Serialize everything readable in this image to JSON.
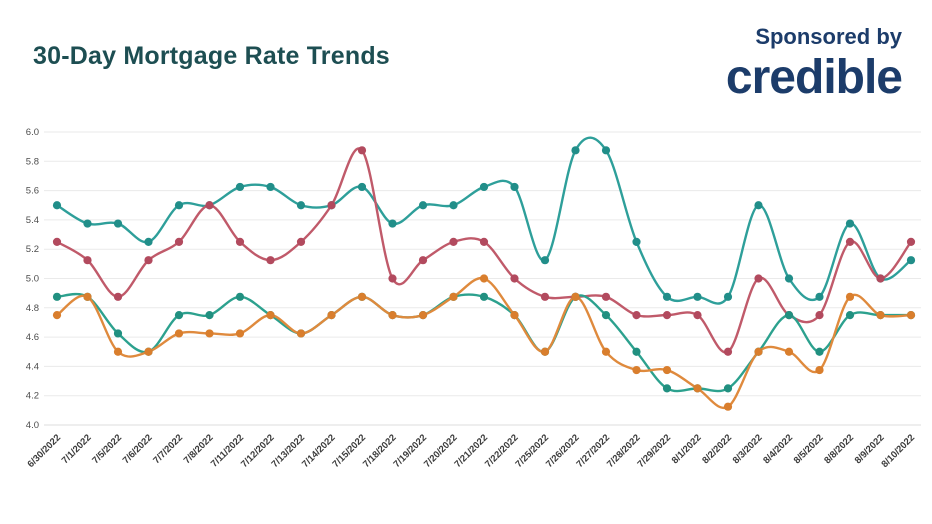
{
  "header": {
    "title": "30-Day Mortgage Rate Trends",
    "sponsored_by": "Sponsored by",
    "brand": "credible",
    "title_color": "#1d4e52",
    "brand_color": "#1c3c6a"
  },
  "chart_data": {
    "type": "line",
    "title": "30-Day Mortgage Rate Trends",
    "legend_position": "none",
    "grid": true,
    "x_labels": [
      "6/30/2022",
      "7/1/2022",
      "7/5/2022",
      "7/6/2022",
      "7/7/2022",
      "7/8/2022",
      "7/11/2022",
      "7/12/2022",
      "7/13/2022",
      "7/14/2022",
      "7/15/2022",
      "7/18/2022",
      "7/19/2022",
      "7/20/2022",
      "7/21/2022",
      "7/22/2022",
      "7/25/2022",
      "7/26/2022",
      "7/27/2022",
      "7/28/2022",
      "7/29/2022",
      "8/1/2022",
      "8/2/2022",
      "8/3/2022",
      "8/4/2022",
      "8/5/2022",
      "8/8/2022",
      "8/9/2022",
      "8/10/2022"
    ],
    "y_axis": {
      "min": 4.0,
      "max": 6.0,
      "step": 0.2,
      "tick_labels": [
        "6.0",
        "5.8",
        "5.6",
        "5.4",
        "5.2",
        "5.0",
        "4.8",
        "4.6",
        "4.4",
        "4.2",
        "4.0"
      ]
    },
    "series": [
      {
        "name": "teal-upper",
        "color": "#2e9f9a",
        "dot_color": "#218e89",
        "values": [
          5.5,
          5.375,
          5.375,
          5.25,
          5.5,
          5.5,
          5.625,
          5.625,
          5.5,
          5.5,
          5.625,
          5.375,
          5.5,
          5.5,
          5.625,
          5.625,
          5.125,
          5.875,
          5.875,
          5.25,
          4.875,
          4.875,
          4.875,
          5.5,
          5.0,
          4.875,
          5.375,
          5.0,
          5.125
        ]
      },
      {
        "name": "red",
        "color": "#c05a6a",
        "dot_color": "#b24a5e",
        "values": [
          5.25,
          5.125,
          4.875,
          5.125,
          5.25,
          5.5,
          5.25,
          5.125,
          5.25,
          5.5,
          5.875,
          5.0,
          5.125,
          5.25,
          5.25,
          5.0,
          4.875,
          4.875,
          4.875,
          4.75,
          4.75,
          4.75,
          4.5,
          5.0,
          4.75,
          4.75,
          5.25,
          5.0,
          5.25
        ]
      },
      {
        "name": "teal-lower",
        "color": "#2ca18e",
        "dot_color": "#219080",
        "values": [
          4.875,
          4.875,
          4.625,
          4.5,
          4.75,
          4.75,
          4.875,
          4.75,
          4.625,
          4.75,
          4.875,
          4.75,
          4.75,
          4.875,
          4.875,
          4.75,
          4.5,
          4.875,
          4.75,
          4.5,
          4.25,
          4.25,
          4.25,
          4.5,
          4.75,
          4.5,
          4.75,
          4.75,
          4.75
        ]
      },
      {
        "name": "orange",
        "color": "#df8a3d",
        "dot_color": "#d97e2d",
        "values": [
          4.75,
          4.875,
          4.5,
          4.5,
          4.625,
          4.625,
          4.625,
          4.75,
          4.625,
          4.75,
          4.875,
          4.75,
          4.75,
          4.875,
          5.0,
          4.75,
          4.5,
          4.875,
          4.5,
          4.375,
          4.375,
          4.25,
          4.125,
          4.5,
          4.5,
          4.375,
          4.875,
          4.75,
          4.75
        ]
      }
    ]
  }
}
